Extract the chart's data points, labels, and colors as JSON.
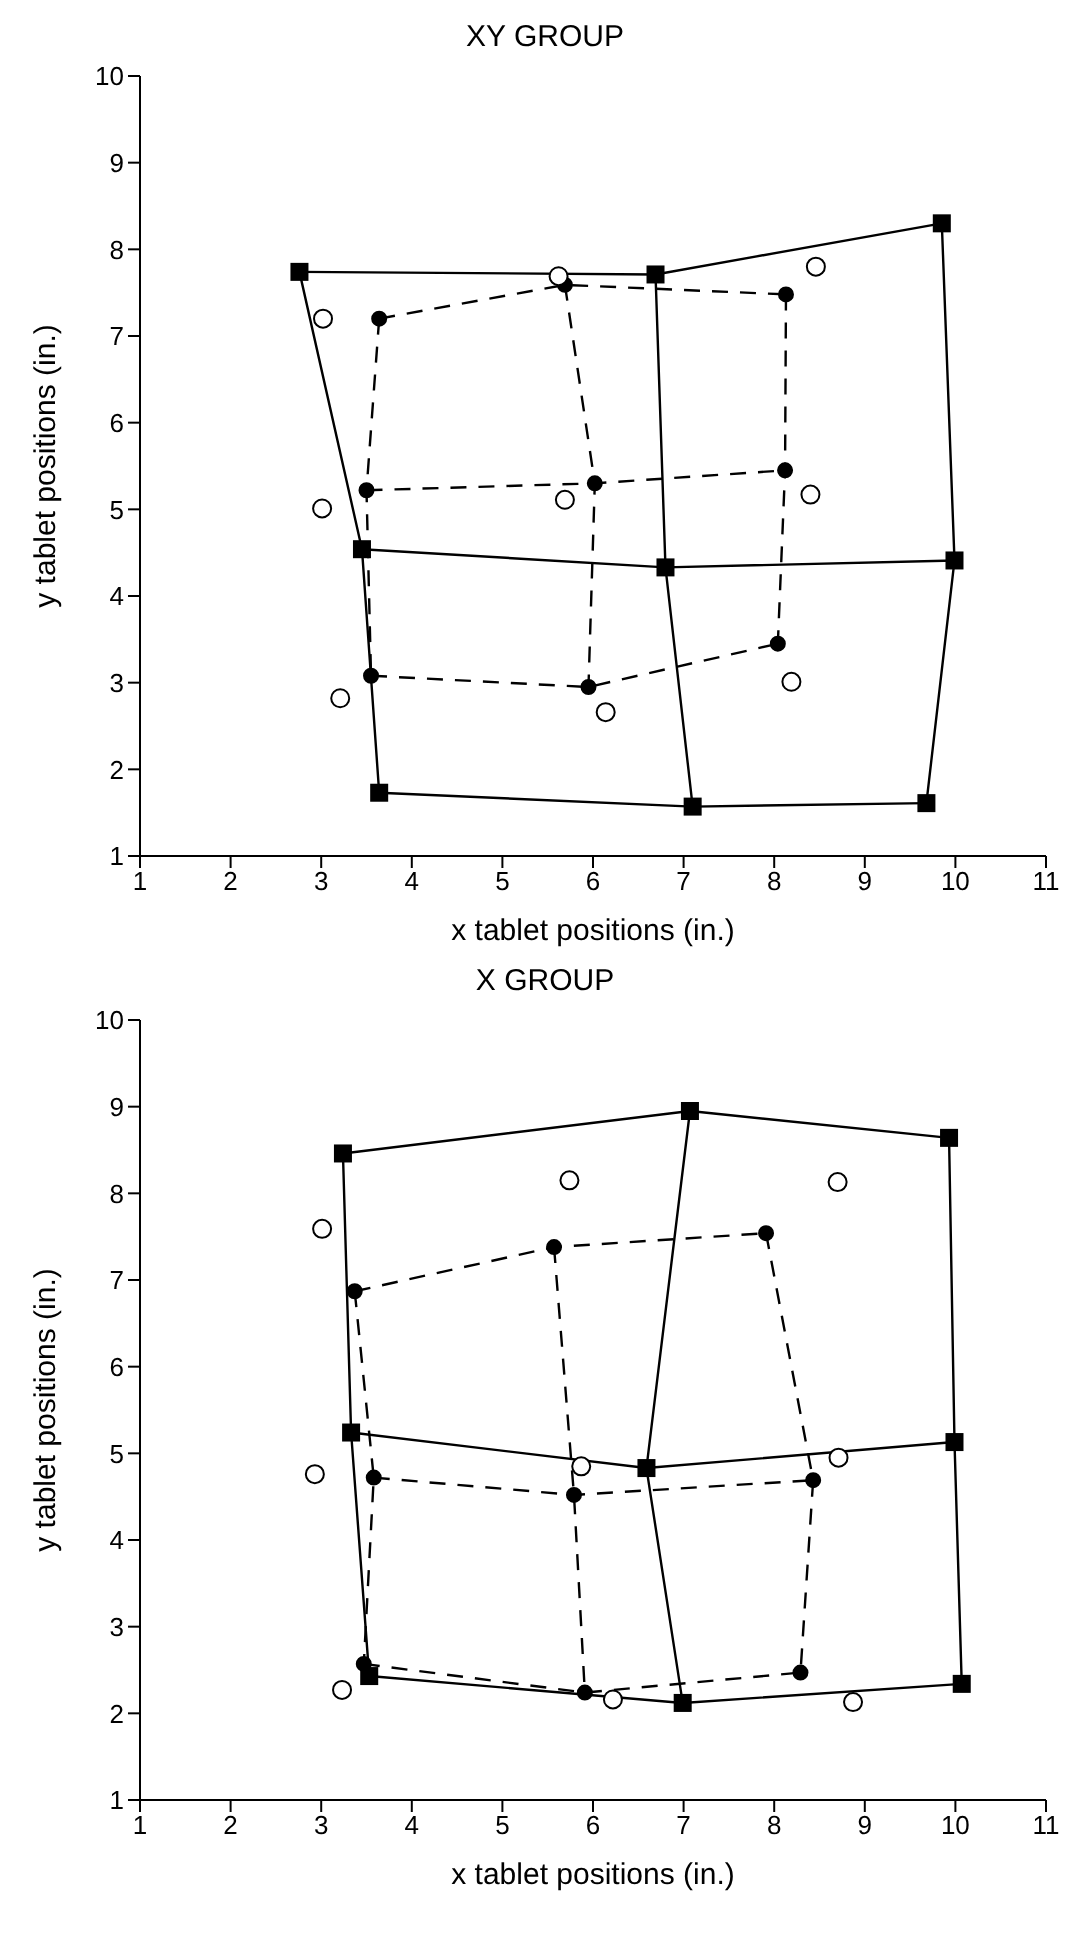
{
  "chart_data": [
    {
      "type": "line",
      "title": "XY GROUP",
      "xlabel": "x tablet positions (in.)",
      "ylabel": "y tablet positions (in.)",
      "xlim": [
        1,
        11
      ],
      "xticks": [
        1,
        2,
        3,
        4,
        5,
        6,
        7,
        8,
        9,
        10,
        11
      ],
      "ylim": [
        1,
        10
      ],
      "yticks": [
        1,
        2,
        3,
        4,
        5,
        6,
        7,
        8,
        9,
        10
      ],
      "grid": false,
      "legend": false,
      "series": [
        {
          "marker": "square",
          "line_style": "solid",
          "color": "#000000",
          "x": [
            2.76,
            6.69,
            9.85
          ],
          "values": [
            7.74,
            7.71,
            8.3
          ]
        },
        {
          "marker": "square",
          "line_style": "solid",
          "color": "#000000",
          "x": [
            3.45,
            6.8,
            9.99
          ],
          "values": [
            4.54,
            4.33,
            4.41
          ]
        },
        {
          "marker": "square",
          "line_style": "solid",
          "color": "#000000",
          "x": [
            3.64,
            7.1,
            9.68
          ],
          "values": [
            1.73,
            1.57,
            1.61
          ]
        },
        {
          "marker": "none",
          "line_style": "solid",
          "color": "#000000",
          "x": [
            2.76,
            3.45,
            3.64
          ],
          "values": [
            7.74,
            4.54,
            1.73
          ]
        },
        {
          "marker": "none",
          "line_style": "solid",
          "color": "#000000",
          "x": [
            6.69,
            6.8,
            7.1
          ],
          "values": [
            7.71,
            4.33,
            1.57
          ]
        },
        {
          "marker": "none",
          "line_style": "solid",
          "color": "#000000",
          "x": [
            9.85,
            9.99,
            9.68
          ],
          "values": [
            8.3,
            4.41,
            1.61
          ]
        },
        {
          "marker": "circle",
          "line_style": "dashed",
          "color": "#000000",
          "x": [
            3.64,
            5.69,
            8.13
          ],
          "values": [
            7.2,
            7.59,
            7.48
          ]
        },
        {
          "marker": "circle",
          "line_style": "dashed",
          "color": "#000000",
          "x": [
            3.5,
            6.02,
            8.12
          ],
          "values": [
            5.22,
            5.3,
            5.45
          ]
        },
        {
          "marker": "circle",
          "line_style": "dashed",
          "color": "#000000",
          "x": [
            3.55,
            5.95,
            8.04
          ],
          "values": [
            3.08,
            2.95,
            3.45
          ]
        },
        {
          "marker": "none",
          "line_style": "dashed",
          "color": "#000000",
          "x": [
            3.64,
            3.5,
            3.55
          ],
          "values": [
            7.2,
            5.22,
            3.08
          ]
        },
        {
          "marker": "none",
          "line_style": "dashed",
          "color": "#000000",
          "x": [
            5.69,
            6.02,
            5.95
          ],
          "values": [
            7.59,
            5.3,
            2.95
          ]
        },
        {
          "marker": "none",
          "line_style": "dashed",
          "color": "#000000",
          "x": [
            8.13,
            8.12,
            8.04
          ],
          "values": [
            7.48,
            5.45,
            3.45
          ]
        },
        {
          "type": "scatter",
          "marker": "circle",
          "color": "#000000",
          "x": [
            3.02,
            5.62,
            8.46,
            3.01,
            5.69,
            8.4,
            3.21,
            6.14,
            8.19
          ],
          "values": [
            7.2,
            7.69,
            7.8,
            5.01,
            5.11,
            5.17,
            2.82,
            2.66,
            3.01
          ]
        }
      ]
    },
    {
      "type": "line",
      "title": "X GROUP",
      "xlabel": "x tablet positions (in.)",
      "ylabel": "y tablet positions (in.)",
      "xlim": [
        1,
        11
      ],
      "xticks": [
        1,
        2,
        3,
        4,
        5,
        6,
        7,
        8,
        9,
        10,
        11
      ],
      "ylim": [
        1,
        10
      ],
      "yticks": [
        1,
        2,
        3,
        4,
        5,
        6,
        7,
        8,
        9,
        10
      ],
      "grid": false,
      "legend": false,
      "series": [
        {
          "marker": "square",
          "line_style": "solid",
          "color": "#000000",
          "x": [
            3.24,
            7.07,
            9.93
          ],
          "values": [
            8.46,
            8.95,
            8.64
          ]
        },
        {
          "marker": "square",
          "line_style": "solid",
          "color": "#000000",
          "x": [
            3.33,
            6.59,
            9.99
          ],
          "values": [
            5.24,
            4.83,
            5.13
          ]
        },
        {
          "marker": "square",
          "line_style": "solid",
          "color": "#000000",
          "x": [
            3.53,
            6.99,
            10.07
          ],
          "values": [
            2.43,
            2.12,
            2.34
          ]
        },
        {
          "marker": "none",
          "line_style": "solid",
          "color": "#000000",
          "x": [
            3.24,
            3.33,
            3.53
          ],
          "values": [
            8.46,
            5.24,
            2.43
          ]
        },
        {
          "marker": "none",
          "line_style": "solid",
          "color": "#000000",
          "x": [
            7.07,
            6.59,
            6.99
          ],
          "values": [
            8.95,
            4.83,
            2.12
          ]
        },
        {
          "marker": "none",
          "line_style": "solid",
          "color": "#000000",
          "x": [
            9.93,
            9.99,
            10.07
          ],
          "values": [
            8.64,
            5.13,
            2.34
          ]
        },
        {
          "marker": "circle",
          "line_style": "dashed",
          "color": "#000000",
          "x": [
            3.37,
            5.57,
            7.91
          ],
          "values": [
            6.87,
            7.38,
            7.54
          ]
        },
        {
          "marker": "circle",
          "line_style": "dashed",
          "color": "#000000",
          "x": [
            3.58,
            5.79,
            8.43
          ],
          "values": [
            4.72,
            4.52,
            4.69
          ]
        },
        {
          "marker": "circle",
          "line_style": "dashed",
          "color": "#000000",
          "x": [
            3.47,
            5.91,
            8.29
          ],
          "values": [
            2.57,
            2.24,
            2.47
          ]
        },
        {
          "marker": "none",
          "line_style": "dashed",
          "color": "#000000",
          "x": [
            3.37,
            3.58,
            3.47
          ],
          "values": [
            6.87,
            4.72,
            2.57
          ]
        },
        {
          "marker": "none",
          "line_style": "dashed",
          "color": "#000000",
          "x": [
            5.57,
            5.79,
            5.91
          ],
          "values": [
            7.38,
            4.52,
            2.24
          ]
        },
        {
          "marker": "none",
          "line_style": "dashed",
          "color": "#000000",
          "x": [
            7.91,
            8.43,
            8.29
          ],
          "values": [
            7.54,
            4.69,
            2.47
          ]
        },
        {
          "type": "scatter",
          "marker": "circle",
          "color": "#000000",
          "x": [
            3.01,
            5.74,
            8.7,
            2.93,
            5.87,
            8.71,
            3.23,
            6.22,
            8.87
          ],
          "values": [
            7.59,
            8.15,
            8.13,
            4.76,
            4.85,
            4.95,
            2.27,
            2.16,
            2.13
          ]
        }
      ]
    }
  ]
}
